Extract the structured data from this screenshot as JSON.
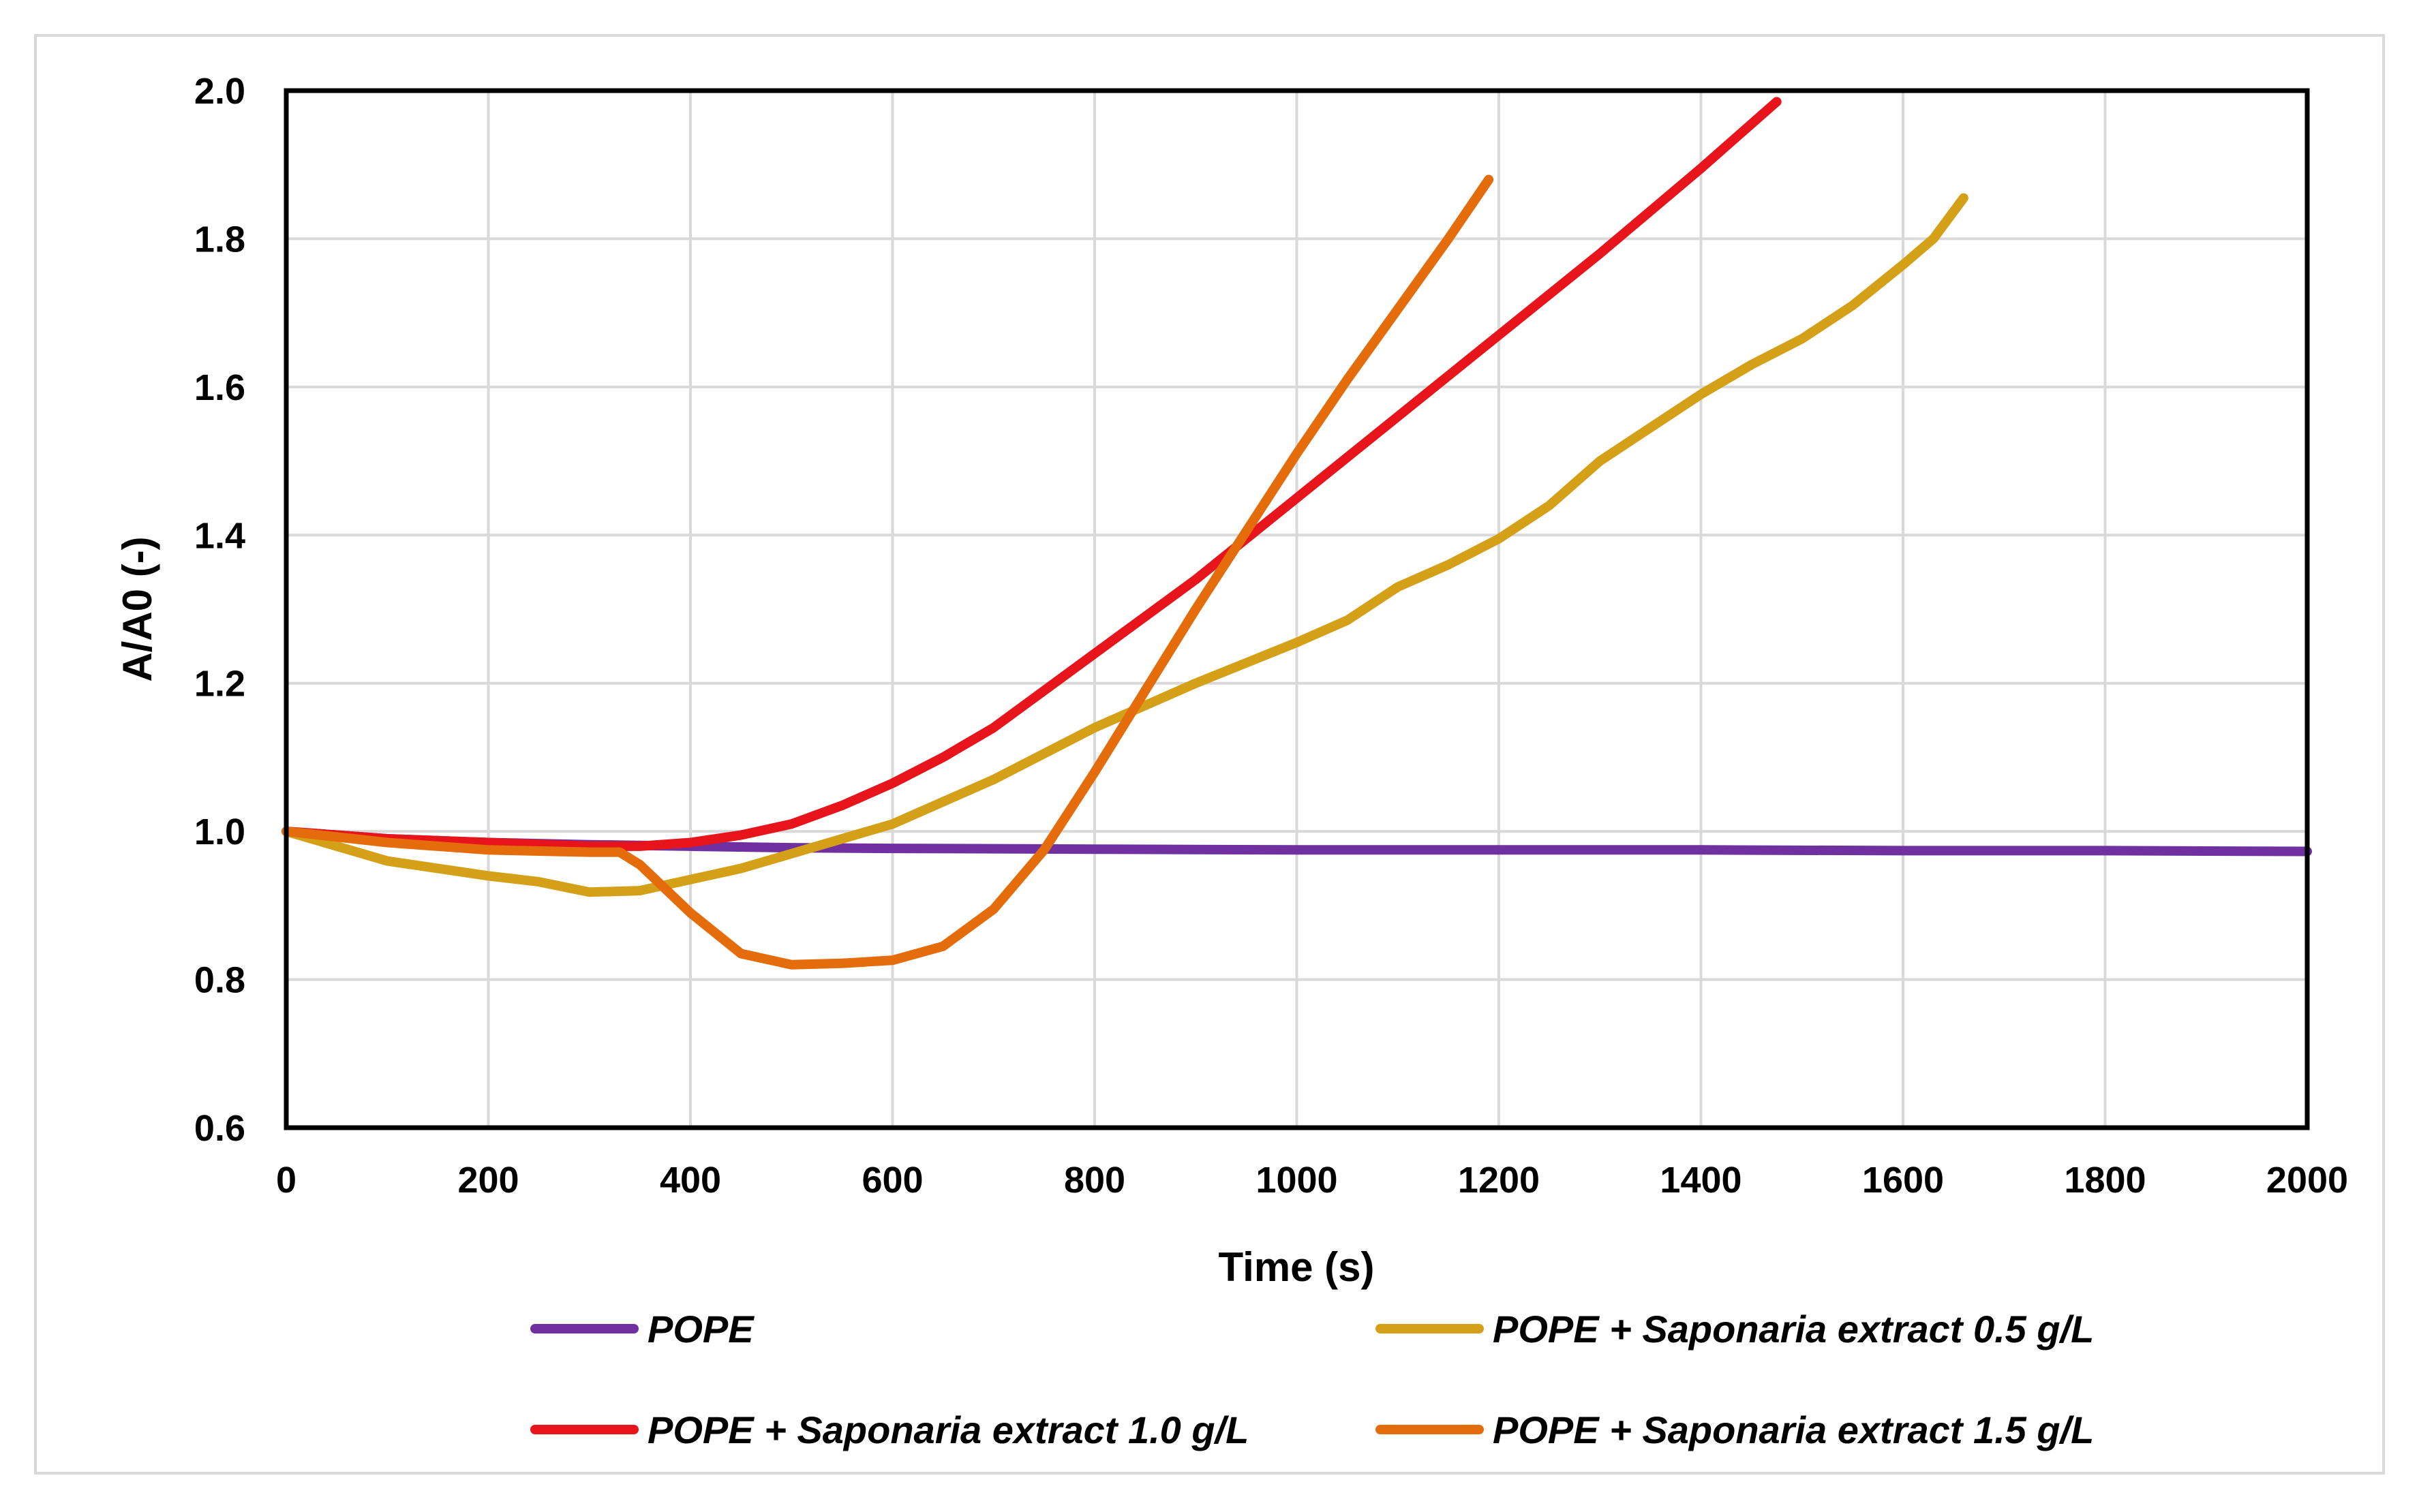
{
  "chart_data": {
    "type": "line",
    "title": "",
    "xlabel": "Time (s)",
    "ylabel": "A/A0 (-)",
    "xlim": [
      0,
      2000
    ],
    "ylim": [
      0.6,
      2.0
    ],
    "x_ticks": [
      0,
      200,
      400,
      600,
      800,
      1000,
      1200,
      1400,
      1600,
      1800,
      2000
    ],
    "y_ticks": [
      0.6,
      0.8,
      1.0,
      1.2,
      1.4,
      1.6,
      1.8,
      2.0
    ],
    "x_tick_labels": [
      "0",
      "200",
      "400",
      "600",
      "800",
      "1000",
      "1200",
      "1400",
      "1600",
      "1800",
      "2000"
    ],
    "y_tick_labels": [
      "0.6",
      "0.8",
      "1.0",
      "1.2",
      "1.4",
      "1.6",
      "1.8",
      "2.0"
    ],
    "grid": true,
    "legend_position": "bottom",
    "series": [
      {
        "name": "POPE",
        "color": "#7030A0",
        "x": [
          0,
          100,
          200,
          300,
          400,
          500,
          600,
          800,
          1000,
          1200,
          1400,
          1600,
          1800,
          2000
        ],
        "y": [
          1.0,
          0.99,
          0.985,
          0.982,
          0.98,
          0.978,
          0.977,
          0.976,
          0.975,
          0.975,
          0.975,
          0.974,
          0.974,
          0.973
        ]
      },
      {
        "name": "POPE + Saponaria extract 0.5 g/L",
        "color": "#D4A017",
        "x": [
          0,
          50,
          100,
          150,
          200,
          250,
          300,
          350,
          400,
          450,
          500,
          550,
          600,
          700,
          800,
          900,
          1000,
          1050,
          1100,
          1150,
          1200,
          1250,
          1300,
          1350,
          1400,
          1450,
          1500,
          1550,
          1600,
          1630,
          1660
        ],
        "y": [
          1.0,
          0.98,
          0.96,
          0.95,
          0.94,
          0.932,
          0.918,
          0.92,
          0.935,
          0.95,
          0.97,
          0.99,
          1.01,
          1.07,
          1.14,
          1.2,
          1.255,
          1.285,
          1.33,
          1.36,
          1.395,
          1.44,
          1.5,
          1.545,
          1.59,
          1.63,
          1.665,
          1.71,
          1.765,
          1.8,
          1.855
        ]
      },
      {
        "name": "POPE + Saponaria extract 1.0 g/L",
        "color": "#E8141B",
        "x": [
          0,
          100,
          200,
          300,
          350,
          400,
          450,
          500,
          550,
          600,
          650,
          700,
          800,
          900,
          1000,
          1100,
          1200,
          1300,
          1400,
          1475
        ],
        "y": [
          1.0,
          0.99,
          0.985,
          0.98,
          0.98,
          0.985,
          0.995,
          1.01,
          1.035,
          1.065,
          1.1,
          1.14,
          1.24,
          1.34,
          1.45,
          1.56,
          1.67,
          1.78,
          1.895,
          1.985
        ]
      },
      {
        "name": "POPE + Saponaria extract 1.5 g/L",
        "color": "#E46C0A",
        "x": [
          0,
          100,
          200,
          300,
          330,
          350,
          400,
          450,
          500,
          550,
          600,
          650,
          700,
          750,
          800,
          850,
          900,
          950,
          1000,
          1050,
          1100,
          1150,
          1190
        ],
        "y": [
          1.0,
          0.985,
          0.975,
          0.972,
          0.972,
          0.955,
          0.89,
          0.835,
          0.82,
          0.822,
          0.826,
          0.845,
          0.895,
          0.975,
          1.08,
          1.19,
          1.3,
          1.405,
          1.51,
          1.61,
          1.705,
          1.8,
          1.88
        ]
      }
    ]
  }
}
